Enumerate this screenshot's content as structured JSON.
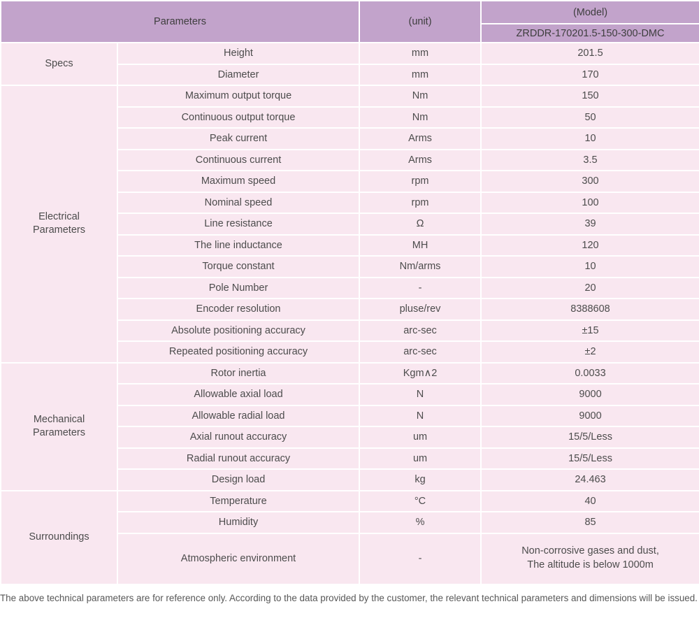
{
  "table": {
    "header": {
      "parameters_label": "Parameters",
      "unit_label": "(unit)",
      "model_label": "(Model)",
      "model_value": "ZRDDR-170201.5-150-300-DMC"
    },
    "sections": [
      {
        "label": "Specs",
        "label_lines": [
          "Specs"
        ],
        "rows": [
          {
            "parameter": "Height",
            "unit": "mm",
            "value": "201.5"
          },
          {
            "parameter": "Diameter",
            "unit": "mm",
            "value": "170"
          }
        ]
      },
      {
        "label": "Electrical Parameters",
        "label_lines": [
          "Electrical",
          "Parameters"
        ],
        "rows": [
          {
            "parameter": "Maximum output torque",
            "unit": "Nm",
            "value": "150"
          },
          {
            "parameter": "Continuous output torque",
            "unit": "Nm",
            "value": "50"
          },
          {
            "parameter": "Peak current",
            "unit": "Arms",
            "value": "10"
          },
          {
            "parameter": "Continuous current",
            "unit": "Arms",
            "value": "3.5"
          },
          {
            "parameter": "Maximum speed",
            "unit": "rpm",
            "value": "300"
          },
          {
            "parameter": "Nominal speed",
            "unit": "rpm",
            "value": "100"
          },
          {
            "parameter": "Line resistance",
            "unit": "Ω",
            "value": "39"
          },
          {
            "parameter": "The line inductance",
            "unit": "MH",
            "value": "120"
          },
          {
            "parameter": "Torque constant",
            "unit": "Nm/arms",
            "value": "10"
          },
          {
            "parameter": "Pole Number",
            "unit": "-",
            "value": "20"
          },
          {
            "parameter": "Encoder resolution",
            "unit": "pluse/rev",
            "value": "8388608"
          },
          {
            "parameter": "Absolute positioning accuracy",
            "unit": "arc-sec",
            "value": "±15"
          },
          {
            "parameter": "Repeated positioning accuracy",
            "unit": "arc-sec",
            "value": "±2"
          }
        ]
      },
      {
        "label": "Mechanical Parameters",
        "label_lines": [
          "Mechanical",
          "Parameters"
        ],
        "rows": [
          {
            "parameter": "Rotor inertia",
            "unit": "Kgm∧2",
            "value": "0.0033"
          },
          {
            "parameter": "Allowable axial load",
            "unit": "N",
            "value": "9000"
          },
          {
            "parameter": "Allowable radial load",
            "unit": "N",
            "value": "9000"
          },
          {
            "parameter": "Axial runout accuracy",
            "unit": "um",
            "value": "15/5/Less"
          },
          {
            "parameter": "Radial runout accuracy",
            "unit": "um",
            "value": "15/5/Less"
          },
          {
            "parameter": "Design load",
            "unit": "kg",
            "value": "24.463"
          }
        ]
      },
      {
        "label": "Surroundings",
        "label_lines": [
          "Surroundings"
        ],
        "rows": [
          {
            "parameter": "Temperature",
            "unit": "°C",
            "value": "40"
          },
          {
            "parameter": "Humidity",
            "unit": "%",
            "value": "85"
          },
          {
            "parameter": "Atmospheric environment",
            "unit": "-",
            "value": "Non-corrosive gases and dust, The altitude is below 1000m",
            "value_lines": [
              "Non-corrosive gases and dust,",
              "The altitude is below 1000m"
            ],
            "tall": true
          }
        ]
      }
    ]
  },
  "footer": {
    "note": "The above technical parameters are for reference only. According to the data provided by the customer, the relevant technical parameters and dimensions will be issued."
  },
  "colors": {
    "header_bg": "#c2a3cb",
    "row_bg": "#f9e7f0",
    "divider": "#ffffff",
    "text": "#4c4c4c"
  }
}
